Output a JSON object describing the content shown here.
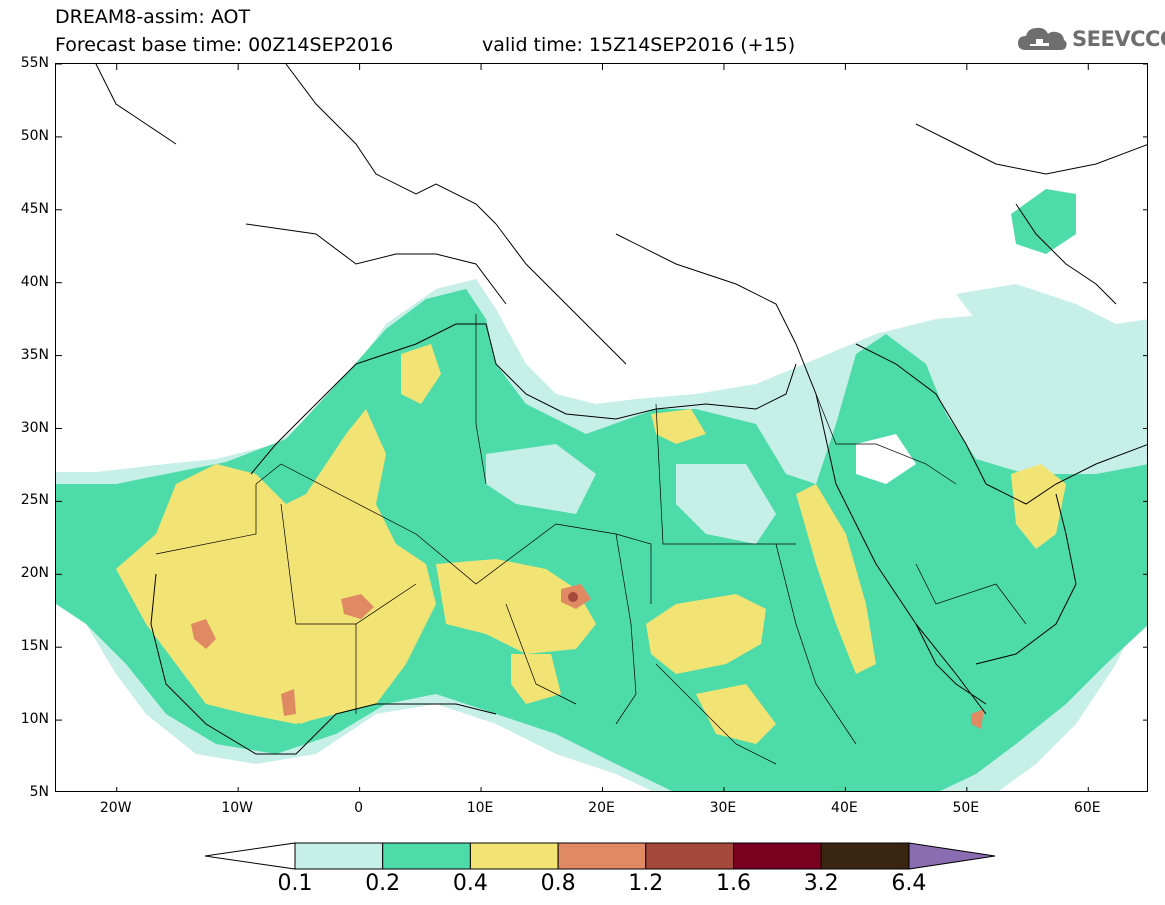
{
  "header": {
    "title_line1": "DREAM8-assim: AOT",
    "title_line2": "Forecast base time: 00Z14SEP2016",
    "valid_time": "valid time: 15Z14SEP2016 (+15)",
    "logo_text": "SEEVCCC",
    "logo_icon": "cloud-icon"
  },
  "map": {
    "lat_labels": [
      "55N",
      "50N",
      "45N",
      "40N",
      "35N",
      "30N",
      "25N",
      "20N",
      "15N",
      "10N",
      "5N"
    ],
    "lon_labels": [
      "20W",
      "10W",
      "0",
      "10E",
      "20E",
      "30E",
      "40E",
      "50E",
      "60E"
    ],
    "lat_range": [
      5,
      55
    ],
    "lon_range": [
      -25,
      65
    ]
  },
  "colorbar": {
    "labels": [
      "0.1",
      "0.2",
      "0.4",
      "0.8",
      "1.2",
      "1.6",
      "3.2",
      "6.4"
    ],
    "colors": [
      "#ffffff",
      "#c6efe7",
      "#4ddba9",
      "#f2e375",
      "#e08a63",
      "#a4493b",
      "#7a0020",
      "#3a2511",
      "#8a6cb0"
    ]
  }
}
